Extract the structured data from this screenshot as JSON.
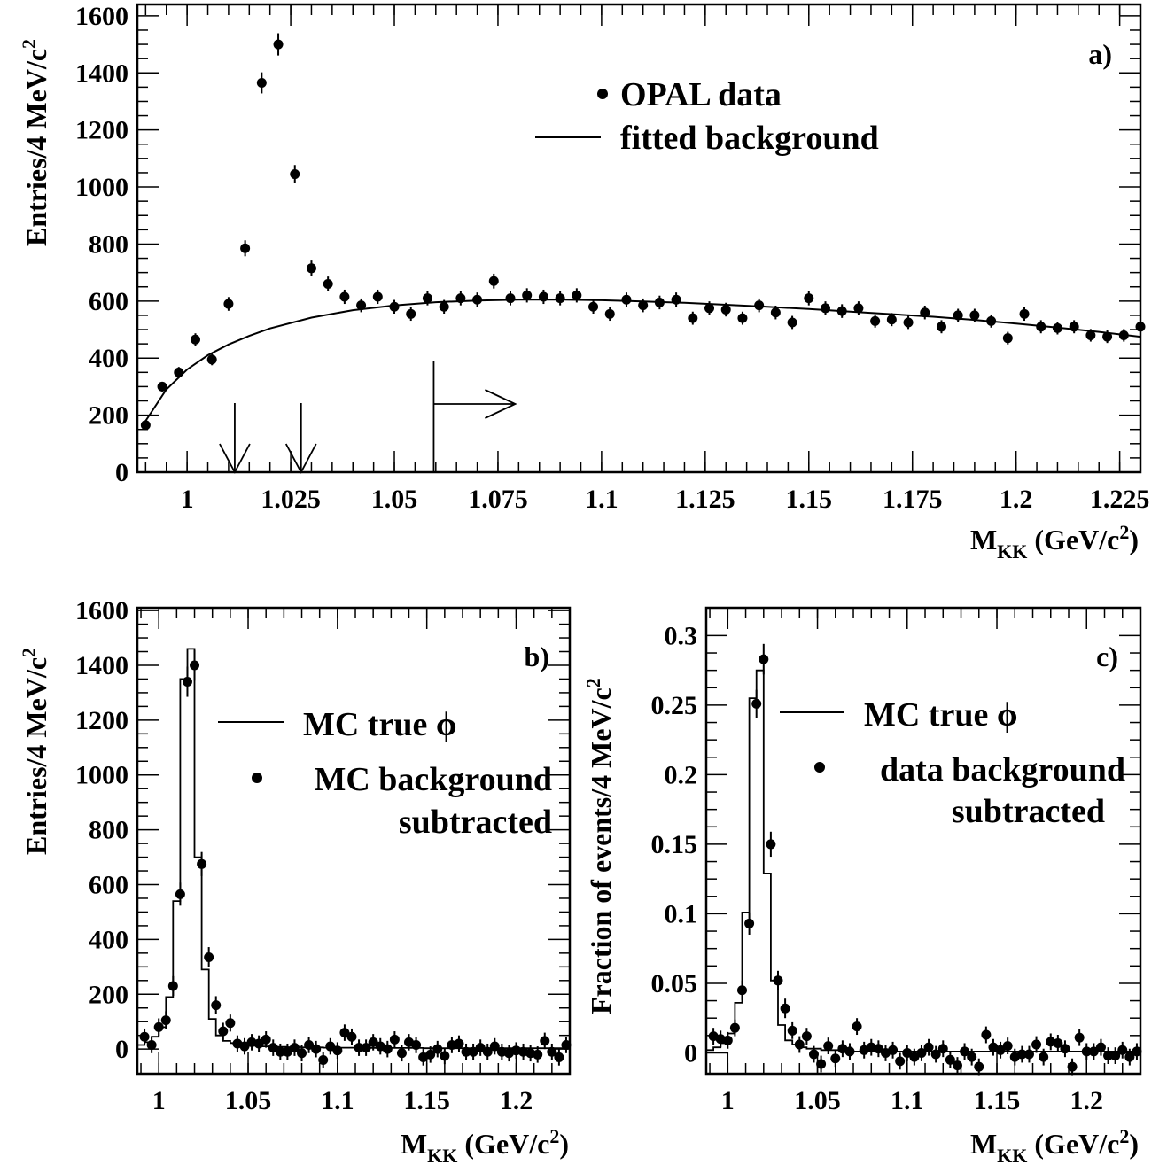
{
  "chart_data": [
    {
      "panel": "a)",
      "type": "scatter",
      "xlabel": "M",
      "xlabel_sub": "KK",
      "xlabel_unit": "(GeV/c",
      "xlabel_unit_sup": "2",
      "xlabel_unit_end": ")",
      "ylabel": "Entries/4 MeV/c",
      "ylabel_sup": "2",
      "xlim": [
        0.988,
        1.23
      ],
      "ylim": [
        0,
        1640
      ],
      "xticks": [
        1,
        1.025,
        1.05,
        1.075,
        1.1,
        1.125,
        1.15,
        1.175,
        1.2,
        1.225
      ],
      "xtick_labels": [
        "1",
        "1.025",
        "1.05",
        "1.075",
        "1.1",
        "1.125",
        "1.15",
        "1.175",
        "1.2",
        "1.225"
      ],
      "yticks": [
        0,
        200,
        400,
        600,
        800,
        1000,
        1200,
        1400,
        1600
      ],
      "ytick_labels": [
        "0",
        "200",
        "400",
        "600",
        "800",
        "1000",
        "1200",
        "1400",
        "1600"
      ],
      "legend": [
        {
          "marker": "dot",
          "label": "OPAL data"
        },
        {
          "marker": "line",
          "label": "fitted background"
        }
      ],
      "series": [
        {
          "name": "OPAL data",
          "kind": "points",
          "x": [
            0.99,
            0.994,
            0.998,
            1.002,
            1.006,
            1.01,
            1.014,
            1.018,
            1.022,
            1.026,
            1.03,
            1.034,
            1.038,
            1.042,
            1.046,
            1.05,
            1.054,
            1.058,
            1.062,
            1.066,
            1.07,
            1.074,
            1.078,
            1.082,
            1.086,
            1.09,
            1.094,
            1.098,
            1.102,
            1.106,
            1.11,
            1.114,
            1.118,
            1.122,
            1.126,
            1.13,
            1.134,
            1.138,
            1.142,
            1.146,
            1.15,
            1.154,
            1.158,
            1.162,
            1.166,
            1.17,
            1.174,
            1.178,
            1.182,
            1.186,
            1.19,
            1.194,
            1.198,
            1.202,
            1.206,
            1.21,
            1.214,
            1.218,
            1.222,
            1.226,
            1.23
          ],
          "y": [
            165,
            300,
            350,
            465,
            395,
            590,
            785,
            1365,
            1500,
            1045,
            715,
            660,
            615,
            585,
            615,
            580,
            555,
            610,
            580,
            610,
            605,
            670,
            610,
            620,
            615,
            610,
            620,
            580,
            555,
            605,
            585,
            595,
            605,
            540,
            575,
            570,
            540,
            585,
            560,
            525,
            610,
            575,
            565,
            575,
            530,
            535,
            525,
            560,
            510,
            550,
            550,
            530,
            470,
            555,
            510,
            505,
            510,
            480,
            475,
            480,
            510
          ],
          "err": [
            13,
            17,
            19,
            22,
            20,
            24,
            28,
            37,
            39,
            32,
            27,
            26,
            25,
            24,
            25,
            24,
            24,
            25,
            24,
            25,
            25,
            26,
            25,
            25,
            25,
            25,
            25,
            24,
            24,
            25,
            24,
            24,
            25,
            23,
            24,
            24,
            23,
            24,
            24,
            23,
            25,
            24,
            24,
            24,
            23,
            23,
            23,
            24,
            23,
            23,
            23,
            23,
            22,
            24,
            23,
            22,
            23,
            22,
            22,
            22,
            23
          ]
        },
        {
          "name": "fitted background",
          "kind": "line",
          "x": [
            0.99,
            0.995,
            1.0,
            1.005,
            1.01,
            1.015,
            1.02,
            1.03,
            1.04,
            1.05,
            1.06,
            1.07,
            1.08,
            1.09,
            1.1,
            1.11,
            1.12,
            1.13,
            1.14,
            1.15,
            1.16,
            1.17,
            1.18,
            1.19,
            1.2,
            1.21,
            1.22,
            1.23
          ],
          "y": [
            180,
            290,
            360,
            410,
            448,
            478,
            504,
            542,
            568,
            585,
            596,
            602,
            605,
            605,
            603,
            599,
            594,
            587,
            580,
            572,
            563,
            554,
            545,
            534,
            521,
            507,
            492,
            475
          ]
        }
      ],
      "annotations": [
        {
          "type": "arrow-down",
          "x": 1.0115
        },
        {
          "type": "arrow-down",
          "x": 1.0275
        },
        {
          "type": "range-right",
          "x": 1.0595
        }
      ]
    },
    {
      "panel": "b)",
      "type": "scatter",
      "xlabel": "M",
      "xlabel_sub": "KK",
      "xlabel_unit": "(GeV/c",
      "xlabel_unit_sup": "2",
      "xlabel_unit_end": ")",
      "ylabel": "Entries/4 MeV/c",
      "ylabel_sup": "2",
      "xlim": [
        0.988,
        1.23
      ],
      "ylim": [
        -90,
        1610
      ],
      "xticks": [
        1,
        1.05,
        1.1,
        1.15,
        1.2
      ],
      "xtick_labels": [
        "1",
        "1.05",
        "1.1",
        "1.15",
        "1.2"
      ],
      "yticks": [
        0,
        200,
        400,
        600,
        800,
        1000,
        1200,
        1400,
        1600
      ],
      "ytick_labels": [
        "0",
        "200",
        "400",
        "600",
        "800",
        "1000",
        "1200",
        "1400",
        "1600"
      ],
      "legend": [
        {
          "marker": "line",
          "label": "MC true ϕ"
        },
        {
          "marker": "dot",
          "label": "MC background"
        },
        {
          "marker": "none",
          "label": "subtracted"
        }
      ],
      "series": [
        {
          "name": "MC true ϕ",
          "kind": "histogram",
          "x": [
            0.99,
            0.994,
            0.998,
            1.002,
            1.006,
            1.01,
            1.014,
            1.018,
            1.022,
            1.026,
            1.03,
            1.034,
            1.038,
            1.042,
            1.046,
            1.05,
            1.054,
            1.058,
            1.062,
            1.066,
            1.07,
            1.074,
            1.078,
            1.082,
            1.086,
            1.09,
            1.094,
            1.098,
            1.102,
            1.106,
            1.11,
            1.114,
            1.118,
            1.122,
            1.126,
            1.13,
            1.134,
            1.138,
            1.142,
            1.146,
            1.15,
            1.154,
            1.158,
            1.162,
            1.166,
            1.17,
            1.174,
            1.178,
            1.182,
            1.186,
            1.19,
            1.194,
            1.198,
            1.202,
            1.206,
            1.21,
            1.214,
            1.218,
            1.222,
            1.226
          ],
          "y": [
            15,
            25,
            45,
            80,
            190,
            540,
            1350,
            1460,
            700,
            290,
            110,
            50,
            30,
            22,
            18,
            15,
            12,
            10,
            10,
            8,
            8,
            7,
            7,
            6,
            6,
            6,
            5,
            5,
            5,
            5,
            5,
            4,
            4,
            4,
            4,
            4,
            4,
            4,
            4,
            4,
            3,
            3,
            3,
            3,
            3,
            3,
            3,
            3,
            3,
            3,
            3,
            3,
            3,
            3,
            3,
            3,
            3,
            3,
            3,
            3
          ]
        },
        {
          "name": "MC background subtracted",
          "kind": "points",
          "x": [
            0.992,
            0.996,
            1.0,
            1.004,
            1.008,
            1.012,
            1.016,
            1.02,
            1.024,
            1.028,
            1.032,
            1.036,
            1.04,
            1.044,
            1.048,
            1.052,
            1.056,
            1.06,
            1.064,
            1.068,
            1.072,
            1.076,
            1.08,
            1.084,
            1.088,
            1.092,
            1.096,
            1.1,
            1.104,
            1.108,
            1.112,
            1.116,
            1.12,
            1.124,
            1.128,
            1.132,
            1.136,
            1.14,
            1.144,
            1.148,
            1.152,
            1.156,
            1.16,
            1.164,
            1.168,
            1.172,
            1.176,
            1.18,
            1.184,
            1.188,
            1.192,
            1.196,
            1.2,
            1.204,
            1.208,
            1.212,
            1.216,
            1.22,
            1.224,
            1.228
          ],
          "y": [
            45,
            15,
            80,
            105,
            230,
            565,
            1340,
            1400,
            675,
            335,
            160,
            65,
            95,
            20,
            10,
            25,
            20,
            35,
            5,
            -10,
            -10,
            5,
            -15,
            15,
            0,
            -40,
            10,
            -5,
            60,
            45,
            5,
            5,
            25,
            10,
            0,
            35,
            -15,
            25,
            15,
            -30,
            -20,
            0,
            -25,
            15,
            20,
            -10,
            -10,
            5,
            -10,
            10,
            -10,
            -15,
            -5,
            -10,
            -15,
            -20,
            30,
            -10,
            -30,
            15
          ],
          "err": [
            30,
            30,
            32,
            33,
            36,
            42,
            55,
            56,
            44,
            37,
            33,
            31,
            31,
            30,
            30,
            30,
            30,
            30,
            30,
            30,
            30,
            30,
            30,
            30,
            30,
            30,
            30,
            30,
            30,
            30,
            30,
            30,
            30,
            30,
            30,
            30,
            30,
            30,
            30,
            30,
            30,
            30,
            30,
            30,
            30,
            30,
            30,
            30,
            30,
            30,
            30,
            30,
            30,
            30,
            30,
            30,
            30,
            30,
            30,
            30
          ]
        }
      ]
    },
    {
      "panel": "c)",
      "type": "scatter",
      "xlabel": "M",
      "xlabel_sub": "KK",
      "xlabel_unit": "(GeV/c",
      "xlabel_unit_sup": "2",
      "xlabel_unit_end": ")",
      "ylabel": "Fraction of events/4 MeV/c",
      "ylabel_sup": "2",
      "xlim": [
        0.988,
        1.23
      ],
      "ylim": [
        -0.015,
        0.32
      ],
      "xticks": [
        1,
        1.05,
        1.1,
        1.15,
        1.2
      ],
      "xtick_labels": [
        "1",
        "1.05",
        "1.1",
        "1.15",
        "1.2"
      ],
      "yticks": [
        0,
        0.05,
        0.1,
        0.15,
        0.2,
        0.25,
        0.3
      ],
      "ytick_labels": [
        "0",
        "0.05",
        "0.1",
        "0.15",
        "0.2",
        "0.25",
        "0.3"
      ],
      "legend": [
        {
          "marker": "line",
          "label": "MC true ϕ"
        },
        {
          "marker": "dot",
          "label": "data background"
        },
        {
          "marker": "none",
          "label": "subtracted"
        }
      ],
      "series": [
        {
          "name": "MC true ϕ",
          "kind": "histogram",
          "x": [
            0.99,
            0.994,
            0.998,
            1.002,
            1.006,
            1.01,
            1.014,
            1.018,
            1.022,
            1.026,
            1.03,
            1.034,
            1.038,
            1.042,
            1.046,
            1.05,
            1.054,
            1.058,
            1.062,
            1.066,
            1.07,
            1.074,
            1.078,
            1.082,
            1.086,
            1.09,
            1.094,
            1.098,
            1.102,
            1.106,
            1.11,
            1.114,
            1.118,
            1.122,
            1.126,
            1.13,
            1.134,
            1.138,
            1.142,
            1.146,
            1.15,
            1.154,
            1.158,
            1.162,
            1.166,
            1.17,
            1.174,
            1.178,
            1.182,
            1.186,
            1.19,
            1.194,
            1.198,
            1.202,
            1.206,
            1.21,
            1.214,
            1.218,
            1.222,
            1.226
          ],
          "y": [
            0.002,
            0.004,
            0.007,
            0.014,
            0.036,
            0.101,
            0.255,
            0.275,
            0.129,
            0.052,
            0.02,
            0.009,
            0.006,
            0.004,
            0.003,
            0.003,
            0.002,
            0.002,
            0.002,
            0.002,
            0.001,
            0.001,
            0.001,
            0.001,
            0.001,
            0.001,
            0.001,
            0.001,
            0.001,
            0.001,
            0.001,
            0.001,
            0.001,
            0.001,
            0.001,
            0.001,
            0.001,
            0.001,
            0.001,
            0.001,
            0.001,
            0.001,
            0.001,
            0.001,
            0.001,
            0.001,
            0.001,
            0.001,
            0.001,
            0.001,
            0.001,
            0.001,
            0.001,
            0.001,
            0.001,
            0.001,
            0.001,
            0.001,
            0.001,
            0.001
          ]
        },
        {
          "name": "data background subtracted",
          "kind": "points",
          "x": [
            0.992,
            0.996,
            1.0,
            1.004,
            1.008,
            1.012,
            1.016,
            1.02,
            1.024,
            1.028,
            1.032,
            1.036,
            1.04,
            1.044,
            1.048,
            1.052,
            1.056,
            1.06,
            1.064,
            1.068,
            1.072,
            1.076,
            1.08,
            1.084,
            1.088,
            1.092,
            1.096,
            1.1,
            1.104,
            1.108,
            1.112,
            1.116,
            1.12,
            1.124,
            1.128,
            1.132,
            1.136,
            1.14,
            1.144,
            1.148,
            1.152,
            1.156,
            1.16,
            1.164,
            1.168,
            1.172,
            1.176,
            1.18,
            1.184,
            1.188,
            1.192,
            1.196,
            1.2,
            1.204,
            1.208,
            1.212,
            1.216,
            1.22,
            1.224,
            1.228
          ],
          "y": [
            0.012,
            0.01,
            0.009,
            0.018,
            0.045,
            0.093,
            0.251,
            0.283,
            0.15,
            0.052,
            0.032,
            0.016,
            0.006,
            0.012,
            -0.001,
            -0.008,
            0.005,
            -0.004,
            0.003,
            0.001,
            0.019,
            0.002,
            0.004,
            0.003,
            0.0,
            0.002,
            -0.006,
            0.0,
            -0.003,
            0.0,
            0.004,
            -0.001,
            0.003,
            -0.005,
            -0.009,
            0.001,
            -0.003,
            -0.01,
            0.013,
            0.004,
            0.002,
            0.005,
            -0.003,
            -0.001,
            -0.001,
            0.006,
            -0.003,
            0.008,
            0.007,
            0.003,
            -0.01,
            0.011,
            0.001,
            0.001,
            0.004,
            -0.002,
            -0.002,
            0.002,
            -0.003,
            0.001
          ],
          "err": [
            0.006,
            0.006,
            0.006,
            0.006,
            0.007,
            0.008,
            0.01,
            0.011,
            0.009,
            0.007,
            0.007,
            0.006,
            0.006,
            0.006,
            0.006,
            0.006,
            0.006,
            0.006,
            0.006,
            0.006,
            0.006,
            0.006,
            0.006,
            0.006,
            0.006,
            0.006,
            0.006,
            0.006,
            0.006,
            0.006,
            0.006,
            0.006,
            0.006,
            0.006,
            0.006,
            0.006,
            0.006,
            0.006,
            0.006,
            0.006,
            0.006,
            0.006,
            0.006,
            0.006,
            0.006,
            0.006,
            0.006,
            0.006,
            0.006,
            0.006,
            0.006,
            0.006,
            0.006,
            0.006,
            0.006,
            0.006,
            0.006,
            0.006,
            0.006,
            0.006
          ]
        }
      ]
    }
  ]
}
